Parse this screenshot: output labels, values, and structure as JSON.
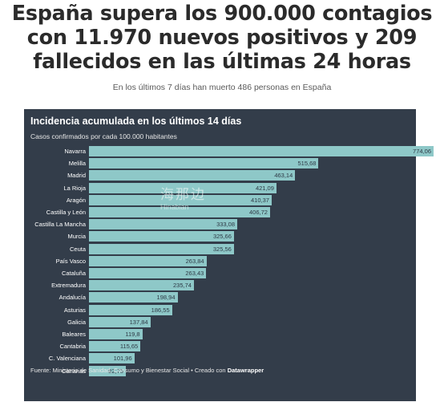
{
  "headline": [
    "España supera los 900.000 contagios",
    "con 11.970 nuevos positivos y 209",
    "fallecidos en las últimas 24 horas"
  ],
  "subtitle": "En los últimos 7 días han muerto 486 personas en España",
  "footer": {
    "source": "Fuente: Ministerio de Sanidad, Consumo y Bienestar Social • Creado con ",
    "brand": "Datawrapper"
  },
  "watermark": {
    "cn": "海那边",
    "en": "Hinabian"
  },
  "colors": {
    "panel": "#333d4a",
    "bar": "#8ec8c8"
  },
  "chart_data": {
    "type": "bar",
    "orientation": "horizontal",
    "title": "Incidencia acumulada en los últimos 14 días",
    "subtitle": "Casos confirmados por cada 100.000 habitantes",
    "categories": [
      "Navarra",
      "Melilla",
      "Madrid",
      "La Rioja",
      "Aragón",
      "Castilla y León",
      "Castilla La Mancha",
      "Murcia",
      "Ceuta",
      "País Vasco",
      "Cataluña",
      "Extremadura",
      "Andalucía",
      "Asturias",
      "Galicia",
      "Baleares",
      "Cantabria",
      "C. Valenciana",
      "Canarias"
    ],
    "values": [
      774.06,
      515.68,
      463.14,
      421.09,
      410.37,
      406.72,
      333.08,
      325.66,
      325.56,
      263.84,
      263.43,
      235.74,
      198.94,
      186.55,
      137.84,
      119.8,
      115.65,
      101.96,
      82.75
    ],
    "value_labels": [
      "774,06",
      "515,68",
      "463,14",
      "421,09",
      "410,37",
      "406,72",
      "333,08",
      "325,66",
      "325,56",
      "263,84",
      "263,43",
      "235,74",
      "198,94",
      "186,55",
      "137,84",
      "119,8",
      "115,65",
      "101,96",
      "82,75"
    ],
    "xlim": [
      0,
      774.06
    ]
  }
}
